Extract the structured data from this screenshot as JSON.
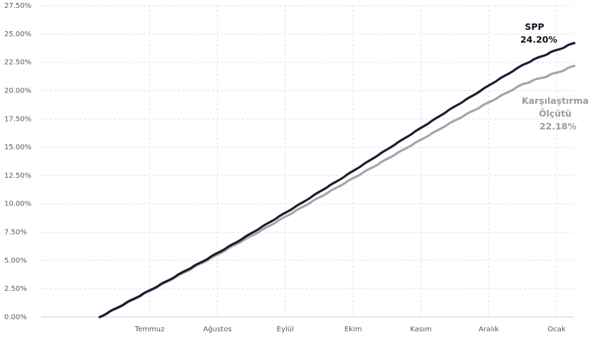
{
  "chart_data": {
    "type": "line",
    "ylim": [
      0,
      27.5
    ],
    "y_ticks": [
      {
        "value": 0,
        "label": "0.00%"
      },
      {
        "value": 2.5,
        "label": "2.50%"
      },
      {
        "value": 5,
        "label": "5.00%"
      },
      {
        "value": 7.5,
        "label": "7.50%"
      },
      {
        "value": 10,
        "label": "10.00%"
      },
      {
        "value": 12.5,
        "label": "12.50%"
      },
      {
        "value": 15,
        "label": "15.00%"
      },
      {
        "value": 17.5,
        "label": "17.50%"
      },
      {
        "value": 20,
        "label": "20.00%"
      },
      {
        "value": 22.5,
        "label": "22.50%"
      },
      {
        "value": 25,
        "label": "25.00%"
      },
      {
        "value": 27.5,
        "label": "27.50%"
      }
    ],
    "x_ticks": [
      "Temmuz",
      "Ağustos",
      "Eylül",
      "Ekim",
      "Kasım",
      "Aralık",
      "Ocak"
    ],
    "x_grid_dashed": true,
    "series": [
      {
        "name": "SPP",
        "end_value_label": "24.20%",
        "color": "#1c1b33",
        "x": [
          0.0,
          0.25,
          0.5,
          0.75,
          1.0,
          1.25,
          1.5,
          1.75,
          2.0,
          2.25,
          2.5,
          2.75,
          3.0,
          3.25,
          3.5,
          3.75,
          4.0,
          4.25,
          4.5,
          4.75,
          5.0,
          5.25,
          5.5,
          5.75,
          6.0,
          6.25,
          6.5,
          6.75,
          7.0
        ],
        "values": [
          0.0,
          0.8,
          1.6,
          2.4,
          3.2,
          4.05,
          4.85,
          5.7,
          6.55,
          7.45,
          8.35,
          9.25,
          10.15,
          11.1,
          12.0,
          12.95,
          13.9,
          14.85,
          15.8,
          16.75,
          17.7,
          18.65,
          19.55,
          20.5,
          21.4,
          22.3,
          23.0,
          23.6,
          24.2
        ]
      },
      {
        "name": "Karşılaştırma Ölçütü",
        "end_value_label": "22.18%",
        "color": "#a5a5a5",
        "x": [
          0.0,
          0.25,
          0.5,
          0.75,
          1.0,
          1.25,
          1.5,
          1.75,
          2.0,
          2.25,
          2.5,
          2.75,
          3.0,
          3.25,
          3.5,
          3.75,
          4.0,
          4.25,
          4.5,
          4.75,
          5.0,
          5.25,
          5.5,
          5.75,
          6.0,
          6.25,
          6.5,
          6.75,
          7.0
        ],
        "values": [
          0.0,
          0.75,
          1.55,
          2.35,
          3.15,
          3.95,
          4.75,
          5.55,
          6.4,
          7.2,
          8.05,
          8.9,
          9.75,
          10.6,
          11.45,
          12.3,
          13.15,
          14.0,
          14.85,
          15.7,
          16.55,
          17.4,
          18.2,
          19.0,
          19.8,
          20.6,
          21.1,
          21.6,
          22.18
        ]
      }
    ],
    "end_labels": {
      "spp": {
        "line1": "SPP",
        "line2": "24.20%"
      },
      "benchmark": {
        "line1": "Karşılaştırma",
        "line2": "Ölçütü",
        "line3": "22.18%"
      }
    }
  }
}
